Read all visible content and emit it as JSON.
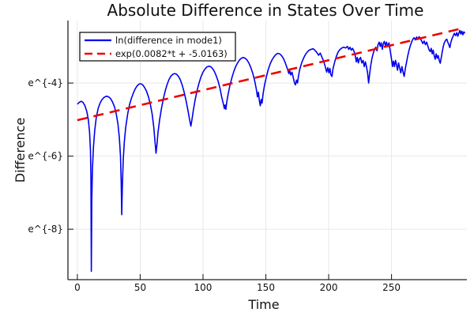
{
  "title": "Absolute Difference in States Over Time",
  "colors": {
    "series_blue": "#0000ee",
    "fit_red": "#ee0000",
    "grid": "#e8e8e8",
    "axis": "#222222",
    "text": "#111111",
    "background": "#ffffff",
    "legend_border": "#000000",
    "legend_background": "#ffffff"
  },
  "chart_data": {
    "type": "line",
    "title": "Absolute Difference in States Over Time",
    "xlabel": "Time",
    "ylabel": "Difference",
    "y_scale": "ln",
    "grid": true,
    "legend_position": "top-left",
    "xlim": [
      -7.5,
      310
    ],
    "ylim_ln": [
      -9.38,
      -2.29
    ],
    "x_ticks": [
      0,
      50,
      100,
      150,
      200,
      250
    ],
    "y_ticks": {
      "values": [
        -4,
        -6,
        -8
      ],
      "labels": [
        "e^{-4}",
        "e^{-6}",
        "e^{-8}"
      ]
    },
    "series": [
      {
        "name": "ln(difference in mode1)",
        "color": "#0000ee",
        "style": "solid",
        "points": [
          [
            0,
            -4.58
          ],
          [
            1.5,
            -4.53
          ],
          [
            3,
            -4.5
          ],
          [
            4.5,
            -4.53
          ],
          [
            6,
            -4.62
          ],
          [
            7.5,
            -4.78
          ],
          [
            8.7,
            -5.0
          ],
          [
            9.7,
            -5.35
          ],
          [
            10.4,
            -5.85
          ],
          [
            10.8,
            -6.6
          ],
          [
            11.1,
            -9.15
          ],
          [
            11.5,
            -7.2
          ],
          [
            12,
            -6.35
          ],
          [
            12.8,
            -5.75
          ],
          [
            13.8,
            -5.3
          ],
          [
            15,
            -4.95
          ],
          [
            16.5,
            -4.7
          ],
          [
            18,
            -4.55
          ],
          [
            19.5,
            -4.46
          ],
          [
            21,
            -4.4
          ],
          [
            22.5,
            -4.37
          ],
          [
            23.5,
            -4.36
          ],
          [
            25,
            -4.38
          ],
          [
            26.5,
            -4.43
          ],
          [
            28,
            -4.52
          ],
          [
            29.5,
            -4.65
          ],
          [
            31,
            -4.85
          ],
          [
            32.3,
            -5.12
          ],
          [
            33.4,
            -5.5
          ],
          [
            34.3,
            -6.0
          ],
          [
            34.9,
            -6.7
          ],
          [
            35.3,
            -7.6
          ],
          [
            35.8,
            -6.8
          ],
          [
            36.5,
            -6.1
          ],
          [
            37.4,
            -5.6
          ],
          [
            38.5,
            -5.2
          ],
          [
            40,
            -4.85
          ],
          [
            41.5,
            -4.6
          ],
          [
            43,
            -4.42
          ],
          [
            44.5,
            -4.28
          ],
          [
            46,
            -4.16
          ],
          [
            47.5,
            -4.08
          ],
          [
            49,
            -4.03
          ],
          [
            50.5,
            -4.02
          ],
          [
            52,
            -4.05
          ],
          [
            53.5,
            -4.12
          ],
          [
            55,
            -4.22
          ],
          [
            56.5,
            -4.37
          ],
          [
            58,
            -4.57
          ],
          [
            59.5,
            -4.85
          ],
          [
            60.8,
            -5.2
          ],
          [
            61.8,
            -5.6
          ],
          [
            62.6,
            -5.92
          ],
          [
            63.3,
            -5.7
          ],
          [
            64.2,
            -5.35
          ],
          [
            65.5,
            -5.0
          ],
          [
            67,
            -4.68
          ],
          [
            68.5,
            -4.42
          ],
          [
            70,
            -4.2
          ],
          [
            71.5,
            -4.03
          ],
          [
            73,
            -3.9
          ],
          [
            74.5,
            -3.81
          ],
          [
            76,
            -3.76
          ],
          [
            77.5,
            -3.74
          ],
          [
            79,
            -3.76
          ],
          [
            80.5,
            -3.82
          ],
          [
            82,
            -3.92
          ],
          [
            83.5,
            -4.06
          ],
          [
            85,
            -4.25
          ],
          [
            86.5,
            -4.48
          ],
          [
            88,
            -4.75
          ],
          [
            89.3,
            -5.0
          ],
          [
            90.3,
            -5.18
          ],
          [
            91.2,
            -5.0
          ],
          [
            92.3,
            -4.75
          ],
          [
            93.8,
            -4.45
          ],
          [
            95.3,
            -4.2
          ],
          [
            97,
            -3.98
          ],
          [
            98.5,
            -3.82
          ],
          [
            100,
            -3.7
          ],
          [
            101.5,
            -3.62
          ],
          [
            103,
            -3.56
          ],
          [
            104.5,
            -3.54
          ],
          [
            106,
            -3.55
          ],
          [
            107.5,
            -3.6
          ],
          [
            109,
            -3.68
          ],
          [
            110.5,
            -3.8
          ],
          [
            112,
            -3.95
          ],
          [
            113.5,
            -4.15
          ],
          [
            115,
            -4.4
          ],
          [
            116.2,
            -4.58
          ],
          [
            117,
            -4.7
          ],
          [
            117.6,
            -4.6
          ],
          [
            118.2,
            -4.72
          ],
          [
            119,
            -4.5
          ],
          [
            120,
            -4.3
          ],
          [
            121.5,
            -4.05
          ],
          [
            123,
            -3.85
          ],
          [
            124.5,
            -3.68
          ],
          [
            126,
            -3.55
          ],
          [
            127.5,
            -3.45
          ],
          [
            129,
            -3.37
          ],
          [
            130.5,
            -3.32
          ],
          [
            132,
            -3.3
          ],
          [
            133.5,
            -3.32
          ],
          [
            135,
            -3.37
          ],
          [
            136.5,
            -3.45
          ],
          [
            138,
            -3.57
          ],
          [
            139.5,
            -3.72
          ],
          [
            141,
            -3.92
          ],
          [
            142.3,
            -4.15
          ],
          [
            143.3,
            -4.38
          ],
          [
            144.1,
            -4.25
          ],
          [
            144.9,
            -4.5
          ],
          [
            145.6,
            -4.62
          ],
          [
            146.3,
            -4.45
          ],
          [
            147,
            -4.55
          ],
          [
            147.8,
            -4.3
          ],
          [
            149,
            -4.05
          ],
          [
            150.5,
            -3.82
          ],
          [
            152,
            -3.62
          ],
          [
            153.5,
            -3.47
          ],
          [
            155,
            -3.36
          ],
          [
            156.5,
            -3.28
          ],
          [
            158,
            -3.22
          ],
          [
            159.5,
            -3.19
          ],
          [
            161,
            -3.2
          ],
          [
            162.5,
            -3.25
          ],
          [
            164,
            -3.33
          ],
          [
            165.5,
            -3.45
          ],
          [
            167,
            -3.6
          ],
          [
            168.3,
            -3.74
          ],
          [
            169,
            -3.65
          ],
          [
            169.8,
            -3.78
          ],
          [
            170.8,
            -3.7
          ],
          [
            171.8,
            -3.85
          ],
          [
            172.8,
            -4.0
          ],
          [
            173.6,
            -4.05
          ],
          [
            174.4,
            -3.92
          ],
          [
            175.2,
            -4.0
          ],
          [
            176,
            -3.8
          ],
          [
            177,
            -3.62
          ],
          [
            178.5,
            -3.45
          ],
          [
            180,
            -3.32
          ],
          [
            181.5,
            -3.22
          ],
          [
            183,
            -3.15
          ],
          [
            184.5,
            -3.1
          ],
          [
            186,
            -3.08
          ],
          [
            187.5,
            -3.06
          ],
          [
            189,
            -3.1
          ],
          [
            190.5,
            -3.16
          ],
          [
            192,
            -3.24
          ],
          [
            193.3,
            -3.18
          ],
          [
            194.5,
            -3.28
          ],
          [
            196,
            -3.4
          ],
          [
            197.3,
            -3.55
          ],
          [
            198.4,
            -3.7
          ],
          [
            199.3,
            -3.58
          ],
          [
            200.2,
            -3.72
          ],
          [
            201,
            -3.6
          ],
          [
            201.8,
            -3.78
          ],
          [
            202.6,
            -3.82
          ],
          [
            203.5,
            -3.6
          ],
          [
            204.8,
            -3.42
          ],
          [
            206,
            -3.28
          ],
          [
            207.5,
            -3.15
          ],
          [
            209,
            -3.08
          ],
          [
            210.5,
            -3.04
          ],
          [
            212,
            -3.02
          ],
          [
            213.5,
            -3.04
          ],
          [
            215,
            -3.0
          ],
          [
            216,
            -3.08
          ],
          [
            217,
            -3.02
          ],
          [
            218,
            -3.1
          ],
          [
            219,
            -3.05
          ],
          [
            220,
            -3.12
          ],
          [
            221,
            -3.22
          ],
          [
            222,
            -3.42
          ],
          [
            222.8,
            -3.3
          ],
          [
            223.6,
            -3.45
          ],
          [
            224.4,
            -3.35
          ],
          [
            225.4,
            -3.3
          ],
          [
            226.4,
            -3.45
          ],
          [
            227.4,
            -3.38
          ],
          [
            228.3,
            -3.55
          ],
          [
            229.2,
            -3.42
          ],
          [
            230.1,
            -3.55
          ],
          [
            231,
            -3.72
          ],
          [
            231.8,
            -4.0
          ],
          [
            232.6,
            -3.75
          ],
          [
            233.5,
            -3.52
          ],
          [
            234.5,
            -3.32
          ],
          [
            235.5,
            -3.18
          ],
          [
            236.5,
            -3.08
          ],
          [
            237.5,
            -3.02
          ],
          [
            238.5,
            -3.12
          ],
          [
            239.3,
            -2.95
          ],
          [
            240.2,
            -2.88
          ],
          [
            241,
            -3.0
          ],
          [
            241.8,
            -2.9
          ],
          [
            242.7,
            -3.08
          ],
          [
            243.5,
            -2.92
          ],
          [
            244.3,
            -2.86
          ],
          [
            245.2,
            -2.98
          ],
          [
            246,
            -2.88
          ],
          [
            247,
            -3.0
          ],
          [
            248,
            -2.9
          ],
          [
            249,
            -3.12
          ],
          [
            250,
            -3.35
          ],
          [
            250.8,
            -3.55
          ],
          [
            251.6,
            -3.4
          ],
          [
            252.4,
            -3.55
          ],
          [
            253.2,
            -3.38
          ],
          [
            254,
            -3.5
          ],
          [
            254.8,
            -3.65
          ],
          [
            255.6,
            -3.45
          ],
          [
            256.5,
            -3.58
          ],
          [
            257.4,
            -3.72
          ],
          [
            258.3,
            -3.55
          ],
          [
            259.2,
            -3.7
          ],
          [
            260.1,
            -3.82
          ],
          [
            261,
            -3.6
          ],
          [
            262,
            -3.42
          ],
          [
            263,
            -3.25
          ],
          [
            264,
            -3.1
          ],
          [
            265,
            -2.98
          ],
          [
            266,
            -2.88
          ],
          [
            267,
            -2.8
          ],
          [
            268,
            -2.76
          ],
          [
            269,
            -2.82
          ],
          [
            270,
            -2.74
          ],
          [
            271,
            -2.8
          ],
          [
            272,
            -2.73
          ],
          [
            273,
            -2.78
          ],
          [
            274,
            -2.85
          ],
          [
            275,
            -2.92
          ],
          [
            276,
            -2.85
          ],
          [
            277,
            -2.95
          ],
          [
            278,
            -2.88
          ],
          [
            279,
            -3.0
          ],
          [
            280,
            -3.1
          ],
          [
            280.8,
            -3.14
          ],
          [
            281.6,
            -3.05
          ],
          [
            282.4,
            -3.2
          ],
          [
            283.2,
            -3.1
          ],
          [
            284,
            -3.25
          ],
          [
            284.8,
            -3.35
          ],
          [
            285.6,
            -3.2
          ],
          [
            286.4,
            -3.32
          ],
          [
            287.2,
            -3.25
          ],
          [
            288,
            -3.38
          ],
          [
            288.8,
            -3.46
          ],
          [
            289.6,
            -3.3
          ],
          [
            290.4,
            -3.15
          ],
          [
            291.2,
            -3.0
          ],
          [
            292,
            -2.9
          ],
          [
            293,
            -2.83
          ],
          [
            294,
            -2.8
          ],
          [
            294.8,
            -2.88
          ],
          [
            295.6,
            -2.95
          ],
          [
            296.4,
            -3.03
          ],
          [
            297.2,
            -2.9
          ],
          [
            298,
            -2.8
          ],
          [
            299,
            -2.72
          ],
          [
            300,
            -2.64
          ],
          [
            301,
            -2.7
          ],
          [
            302,
            -2.62
          ],
          [
            302.8,
            -2.72
          ],
          [
            303.6,
            -2.64
          ],
          [
            304.4,
            -2.56
          ],
          [
            305.2,
            -2.66
          ],
          [
            306,
            -2.58
          ],
          [
            306.8,
            -2.68
          ],
          [
            307.6,
            -2.6
          ],
          [
            308.4,
            -2.64
          ]
        ]
      },
      {
        "name": "exp(0.0082*t + -5.0163)",
        "color": "#ee0000",
        "style": "dash",
        "fit": {
          "slope": 0.0082,
          "intercept": -5.0163,
          "t_start": 0,
          "t_end": 306
        }
      }
    ]
  }
}
